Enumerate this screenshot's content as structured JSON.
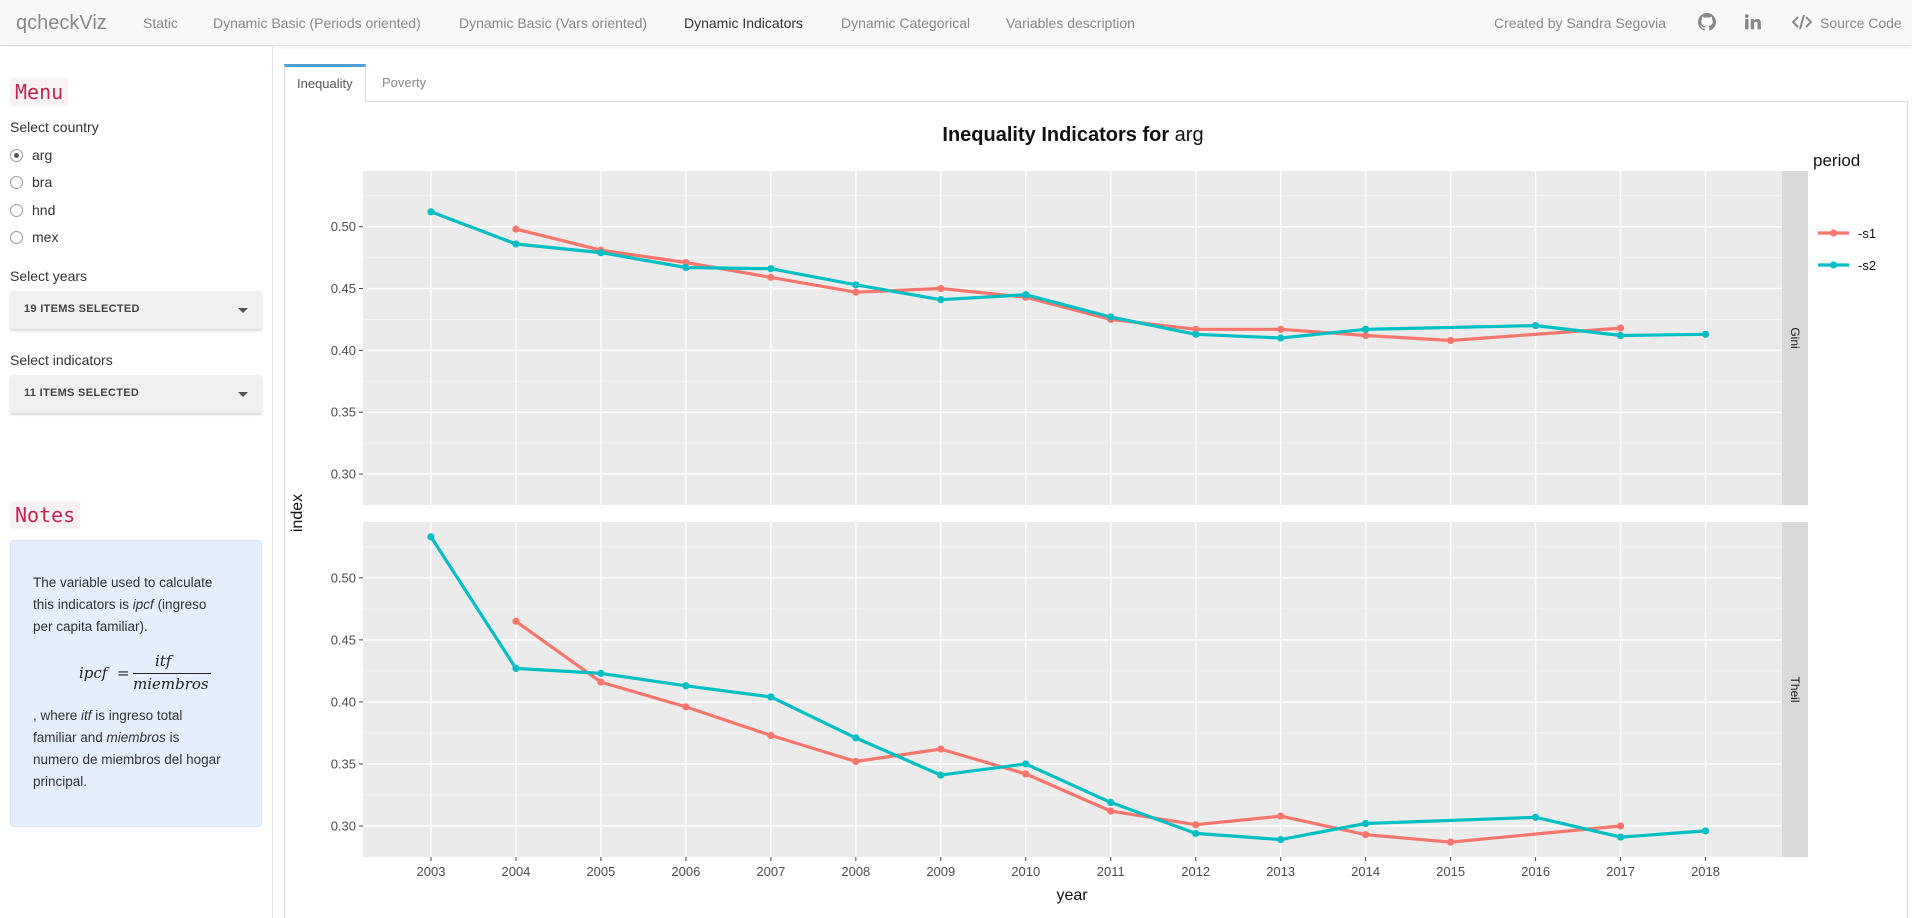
{
  "navbar": {
    "brand": "qcheckViz",
    "items": [
      {
        "label": "Static",
        "active": false
      },
      {
        "label": "Dynamic Basic (Periods oriented)",
        "active": false
      },
      {
        "label": "Dynamic Basic (Vars oriented)",
        "active": false
      },
      {
        "label": "Dynamic Indicators",
        "active": true
      },
      {
        "label": "Dynamic Categorical",
        "active": false
      },
      {
        "label": "Variables description",
        "active": false
      }
    ],
    "credit": "Created by Sandra Segovia",
    "source_code": "Source Code",
    "icons": [
      "github-icon",
      "linkedin-icon",
      "code-icon"
    ]
  },
  "sidebar": {
    "menu_title": "Menu",
    "country_label": "Select country",
    "countries": [
      {
        "label": "arg",
        "checked": true
      },
      {
        "label": "bra",
        "checked": false
      },
      {
        "label": "hnd",
        "checked": false
      },
      {
        "label": "mex",
        "checked": false
      }
    ],
    "years_label": "Select years",
    "years_value": "19 ITEMS SELECTED",
    "indicators_label": "Select indicators",
    "indicators_value": "11 ITEMS SELECTED",
    "notes_title": "Notes",
    "notes": {
      "line1": "The variable used to calculate",
      "line2a": "this indicators is ",
      "line2b": "ipcf",
      "line2c": " (ingreso",
      "line3": "per capita familiar).",
      "formula_lhs": "ipcf",
      "formula_eq": "=",
      "formula_num": "itf",
      "formula_den": "miembros",
      "line4a": ", where ",
      "line4b": "itf",
      "line4c": " is ingreso total",
      "line5a": "familiar and ",
      "line5b": "miembros",
      "line5c": " is",
      "line6": "numero de miembros del hogar",
      "line7": "principal."
    }
  },
  "tabs": [
    {
      "label": "Inequality",
      "active": true
    },
    {
      "label": "Poverty",
      "active": false
    }
  ],
  "chart_data": {
    "type": "line",
    "title_bold": "Inequality Indicators for",
    "title_country": "arg",
    "xlabel": "year",
    "ylabel": "index",
    "legend_title": "period",
    "legend_position": "right",
    "x": [
      2003,
      2004,
      2005,
      2006,
      2007,
      2008,
      2009,
      2010,
      2011,
      2012,
      2013,
      2014,
      2015,
      2016,
      2017,
      2018
    ],
    "xlim": [
      2002.2,
      2018.9
    ],
    "facets": [
      {
        "label": "Gini",
        "ylim": [
          0.275,
          0.545
        ],
        "yticks": [
          0.3,
          0.35,
          0.4,
          0.45,
          0.5
        ],
        "series": [
          {
            "name": "-s1",
            "color": "#F8766D",
            "values": [
              null,
              0.498,
              0.481,
              0.471,
              0.459,
              0.447,
              0.45,
              0.443,
              0.425,
              0.417,
              0.417,
              0.412,
              0.408,
              null,
              0.418,
              null
            ]
          },
          {
            "name": "-s2",
            "color": "#00BFC4",
            "values": [
              0.512,
              0.486,
              0.479,
              0.467,
              0.466,
              0.453,
              0.441,
              0.445,
              0.427,
              0.413,
              0.41,
              0.417,
              null,
              0.42,
              0.412,
              0.413
            ]
          }
        ]
      },
      {
        "label": "Theil",
        "ylim": [
          0.275,
          0.545
        ],
        "yticks": [
          0.3,
          0.35,
          0.4,
          0.45,
          0.5
        ],
        "series": [
          {
            "name": "-s1",
            "color": "#F8766D",
            "values": [
              null,
              0.465,
              0.416,
              0.396,
              0.373,
              0.352,
              0.362,
              0.342,
              0.312,
              0.301,
              0.308,
              0.293,
              0.287,
              null,
              0.3,
              null
            ]
          },
          {
            "name": "-s2",
            "color": "#00BFC4",
            "values": [
              0.533,
              0.427,
              0.423,
              0.413,
              0.404,
              0.371,
              0.341,
              0.35,
              0.319,
              0.294,
              0.289,
              0.302,
              null,
              0.307,
              0.291,
              0.296
            ]
          }
        ]
      }
    ],
    "grid": true
  }
}
